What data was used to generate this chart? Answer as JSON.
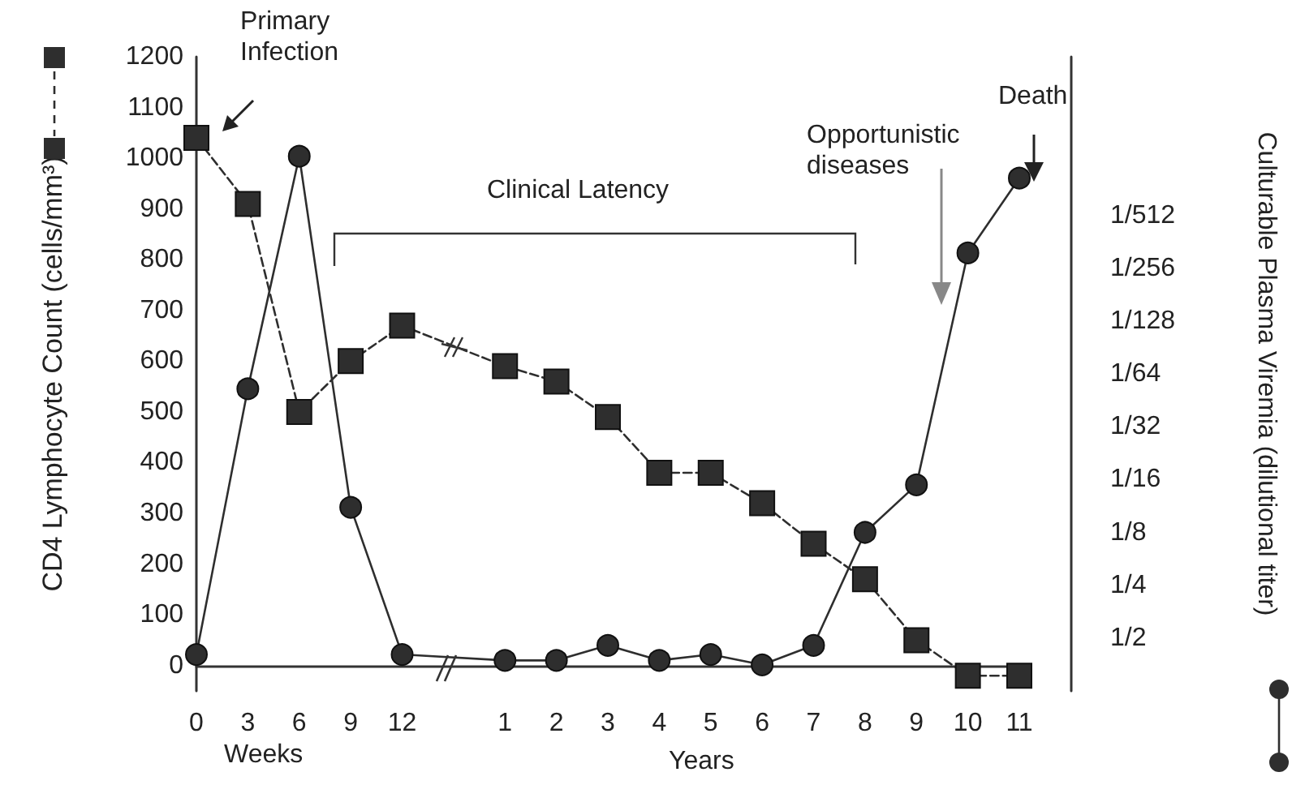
{
  "chart_data": {
    "type": "line",
    "ylabel": "CD4 Lymphocyte Count (cells/mm³)",
    "y2label": "Culturable Plasma Viremia (dilutional titer)",
    "categories": [
      "0",
      "3",
      "6",
      "9",
      "12",
      null,
      "1",
      "2",
      "3",
      "4",
      "5",
      "6",
      "7",
      "8",
      "9",
      "10",
      "11"
    ],
    "series": [
      {
        "color": "#2e2e2e",
        "marker": "square",
        "line_style": "dashed",
        "values": [
          1040,
          910,
          500,
          600,
          670,
          null,
          590,
          560,
          490,
          380,
          380,
          320,
          240,
          170,
          50,
          -20,
          -20
        ]
      },
      {
        "color": "#2e2e2e",
        "marker": "circle",
        "line_style": "solid",
        "axis": "y2",
        "values": [
          0.62,
          0.019,
          0.0009,
          0.09,
          0.62,
          null,
          0.67,
          0.67,
          0.55,
          0.67,
          0.62,
          0.71,
          0.55,
          0.125,
          0.067,
          0.0032,
          0.0012
        ]
      }
    ],
    "ylim": [
      -50,
      1200
    ],
    "yticks": [
      0,
      100,
      200,
      300,
      400,
      500,
      600,
      700,
      800,
      900,
      1000,
      1100,
      1200
    ],
    "y2lim": [
      1,
      0.000244140625
    ],
    "log": "y2",
    "y2ticks": [
      {
        "value": 0.5,
        "label": "1/2"
      },
      {
        "value": 0.25,
        "label": "1/4"
      },
      {
        "value": 0.125,
        "label": "1/8"
      },
      {
        "value": 0.0625,
        "label": "1/16"
      },
      {
        "value": 0.03125,
        "label": "1/32"
      },
      {
        "value": 0.015625,
        "label": "1/64"
      },
      {
        "value": 0.0078125,
        "label": "1/128"
      },
      {
        "value": 0.00390625,
        "label": "1/256"
      },
      {
        "value": 0.001953125,
        "label": "1/512"
      }
    ],
    "grid": false,
    "annotations": [
      "Primary Infection",
      "Clinical Latency",
      "Opportunistic diseases",
      "Death",
      "Weeks",
      "Years"
    ]
  }
}
